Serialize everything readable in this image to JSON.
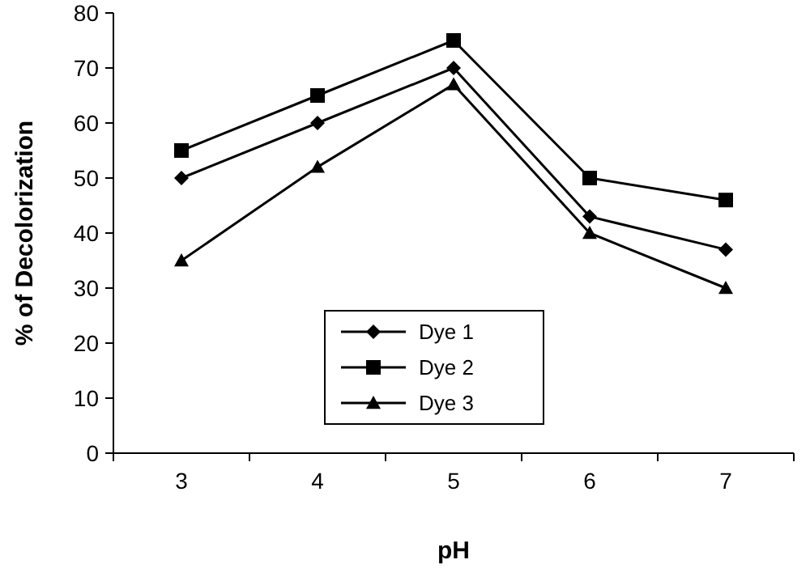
{
  "chart_data": {
    "type": "line",
    "xlabel": "pH",
    "ylabel": "% of Decolorization",
    "categories": [
      "3",
      "4",
      "5",
      "6",
      "7"
    ],
    "series": [
      {
        "name": "Dye 1",
        "color": "#000000",
        "marker": "diamond",
        "values": [
          50,
          60,
          70,
          43,
          37
        ]
      },
      {
        "name": "Dye 2",
        "color": "#000000",
        "marker": "square",
        "values": [
          55,
          65,
          75,
          50,
          46
        ]
      },
      {
        "name": "Dye 3",
        "color": "#000000",
        "marker": "triangle",
        "values": [
          35,
          52,
          67,
          40,
          30
        ]
      }
    ],
    "ylim": [
      0,
      80
    ],
    "yticks": [
      0,
      10,
      20,
      30,
      40,
      50,
      60,
      70,
      80
    ],
    "grid": false,
    "legend": "bottom",
    "line_style": "solid"
  }
}
